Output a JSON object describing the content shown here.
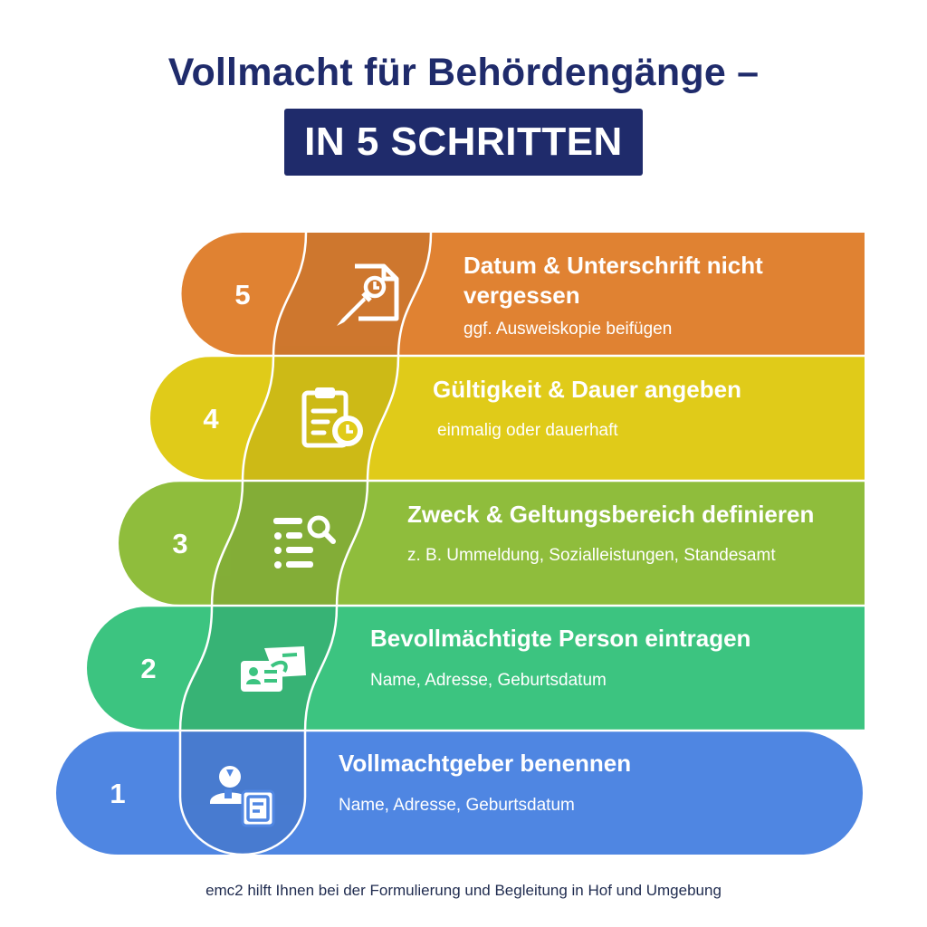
{
  "title": "Vollmacht für Behördengänge –",
  "subtitle": "IN 5 SCHRITTEN",
  "steps": [
    {
      "number": "1",
      "title": "Vollmachtgeber benennen",
      "sub": "Name, Adresse, Geburtsdatum",
      "color": "#4f86e2",
      "icon": "person-document-icon"
    },
    {
      "number": "2",
      "title": "Bevollmächtigte Person eintragen",
      "sub": "Name, Adresse, Geburtsdatum",
      "color": "#3cc480",
      "icon": "id-card-handover-icon"
    },
    {
      "number": "3",
      "title": "Zweck & Geltungsbereich definieren",
      "sub": "z. B. Ummeldung, Sozialleistungen, Standesamt",
      "color": "#8fbd3c",
      "icon": "list-search-icon"
    },
    {
      "number": "4",
      "title": "Gültigkeit & Dauer angeben",
      "sub": "einmalig oder dauerhaft",
      "color": "#e0cb19",
      "icon": "clipboard-clock-icon"
    },
    {
      "number": "5",
      "title": "Datum & Unterschrift nicht vergessen",
      "sub": "ggf. Ausweiskopie beifügen",
      "color": "#e08232",
      "icon": "document-pen-icon"
    }
  ],
  "footer": "emc2 hilft Ihnen bei der Formulierung und Begleitung in Hof und Umgebung"
}
